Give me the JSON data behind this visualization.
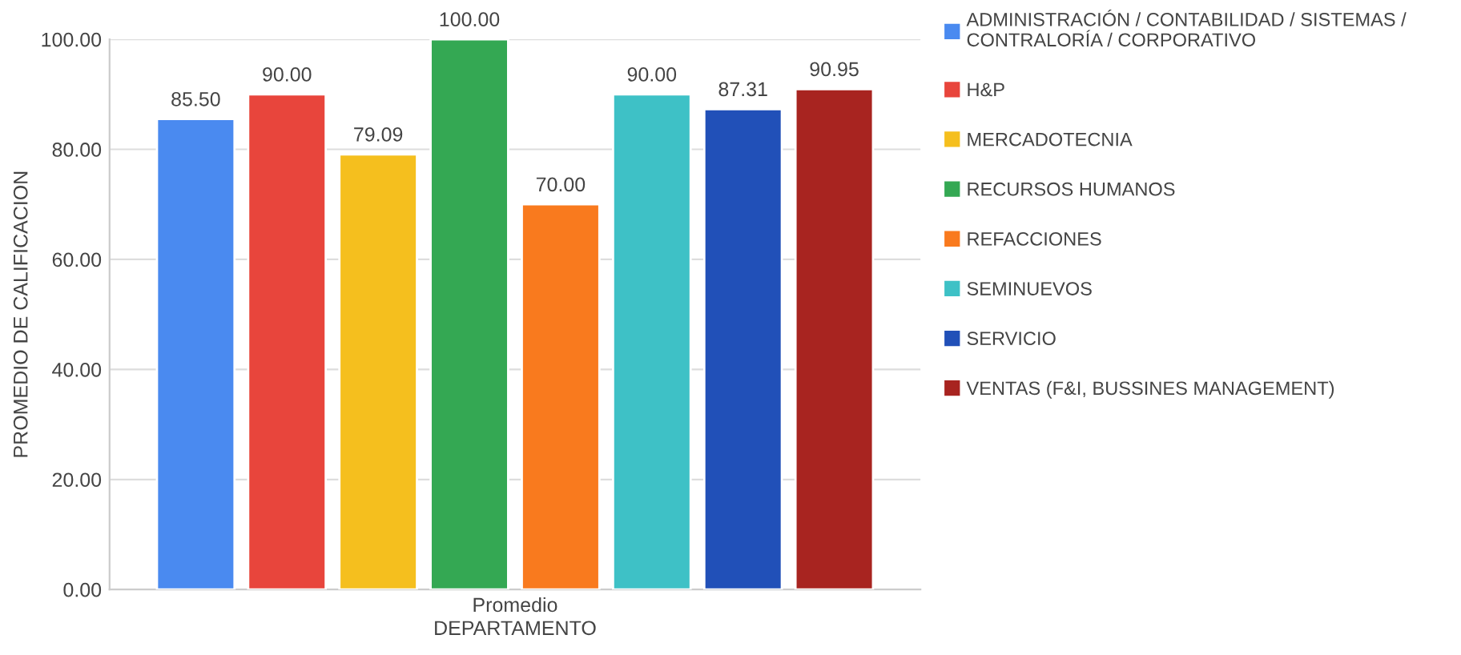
{
  "chart_data": {
    "type": "bar",
    "xlabel": "DEPARTAMENTO",
    "ylabel": "PROMEDIO DE CALIFICACION",
    "categories": [
      "Promedio"
    ],
    "series": [
      {
        "name": "ADMINISTRACIÓN / CONTABILIDAD / SISTEMAS /\nCONTRALORÍA / CORPORATIVO",
        "color": "#4a8af0",
        "values": [
          85.5
        ],
        "value_labels": [
          "85.50"
        ]
      },
      {
        "name": "H&P",
        "color": "#e8453c",
        "values": [
          90.0
        ],
        "value_labels": [
          "90.00"
        ]
      },
      {
        "name": "MERCADOTECNIA",
        "color": "#f5bf1e",
        "values": [
          79.09
        ],
        "value_labels": [
          "79.09"
        ]
      },
      {
        "name": "RECURSOS HUMANOS",
        "color": "#34a853",
        "values": [
          100.0
        ],
        "value_labels": [
          "100.00"
        ]
      },
      {
        "name": "REFACCIONES",
        "color": "#f97a1e",
        "values": [
          70.0
        ],
        "value_labels": [
          "70.00"
        ]
      },
      {
        "name": "SEMINUEVOS",
        "color": "#3ec1c6",
        "values": [
          90.0
        ],
        "value_labels": [
          "90.00"
        ]
      },
      {
        "name": "SERVICIO",
        "color": "#2150b8",
        "values": [
          87.31
        ],
        "value_labels": [
          "87.31"
        ]
      },
      {
        "name": "VENTAS (F&I, BUSSINES MANAGEMENT)",
        "color": "#a82420",
        "values": [
          90.95
        ],
        "value_labels": [
          "90.95"
        ]
      }
    ],
    "ylim": [
      0,
      100
    ],
    "yticks": [
      {
        "value": 0,
        "label": "0.00"
      },
      {
        "value": 20,
        "label": "20.00"
      },
      {
        "value": 40,
        "label": "40.00"
      },
      {
        "value": 60,
        "label": "60.00"
      },
      {
        "value": 80,
        "label": "80.00"
      },
      {
        "value": 100,
        "label": "100.00"
      }
    ],
    "grid": "y",
    "legend": "right"
  }
}
